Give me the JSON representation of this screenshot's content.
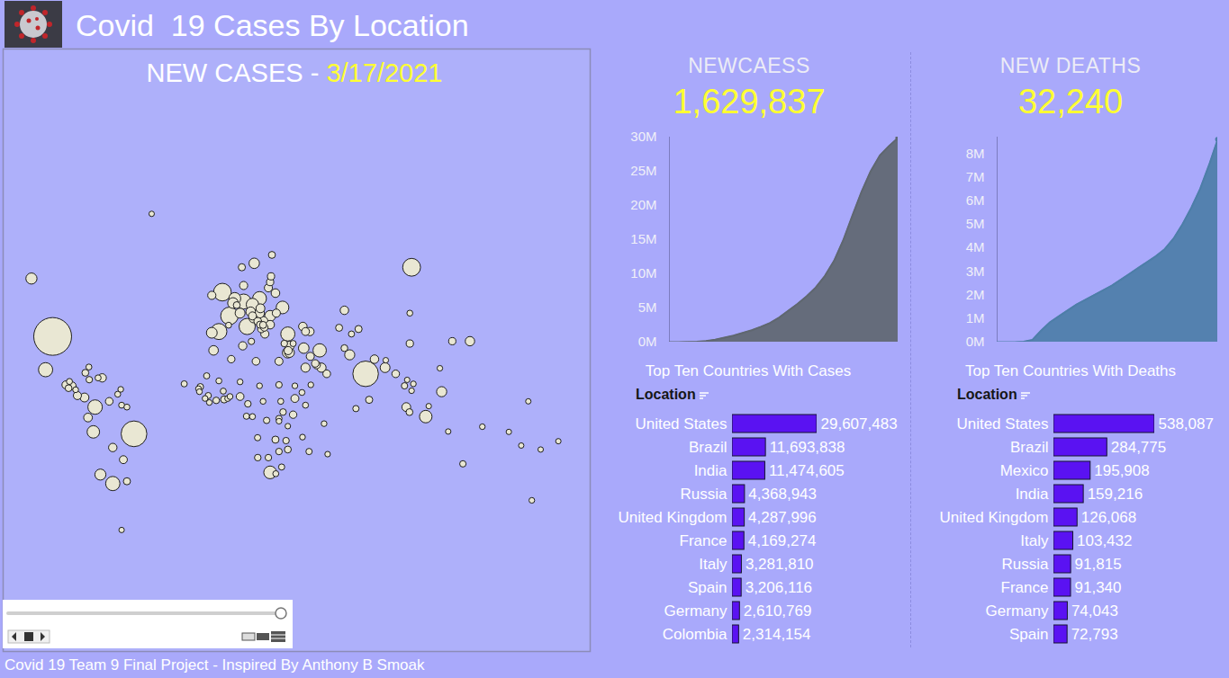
{
  "title": "Covid  19 Cases By Location",
  "caption": "Covid 19 Team 9 Final Project - Inspired By Anthony B Smoak",
  "chart_data": [
    {
      "type": "scatter",
      "title": "NEW CASES - 3/17/2021",
      "color": "#e9e7d3",
      "tick_labels": false,
      "xlim": [
        -126,
        206
      ],
      "ylim": [
        -77,
        86
      ],
      "x": [
        -98,
        -52,
        79,
        105,
        -2,
        2,
        12,
        -4,
        10,
        -74,
        -64,
        -102,
        19,
        35,
        53,
        32,
        25,
        -75,
        15,
        113,
        5,
        -110,
        -71,
        25,
        4,
        -8,
        35,
        44,
        16,
        70,
        122,
        90,
        8,
        21,
        19,
        36,
        14,
        -7,
        138,
        54,
        36,
        45,
        19.5,
        -80,
        102,
        -78,
        25,
        28,
        43.5,
        67,
        -64,
        15.5,
        -70,
        84,
        47.5,
        9.5,
        -84,
        -90.5,
        -8,
        30,
        10,
        22,
        24,
        15,
        28.5,
        39,
        47.7,
        35.2,
        45,
        57,
        18,
        -58,
        51.2,
        -87,
        -66,
        17,
        8,
        96,
        38,
        3,
        21.7,
        50.5,
        104,
        20,
        128,
        25,
        9,
        25.5,
        -56,
        81,
        75,
        -1,
        28,
        19.3,
        26,
        6.1,
        35,
        64,
        -89,
        -79.5,
        103.8,
        67,
        30,
        18,
        32.3,
        12.4,
        -14.5,
        -5.5,
        24,
        34,
        134,
        -77.3,
        -42,
        47,
        30,
        23,
        104,
        101,
        106,
        -72.3,
        -61.2,
        17.9,
        30,
        -4,
        -1.5,
        -10,
        11.6,
        -10.9,
        71,
        145,
        173,
        178,
        121,
        -23.6,
        -59,
        160,
        167,
        188,
        171,
        114.7,
        105,
        102.5,
        125.7,
        48,
        45,
        43,
        39,
        31,
        19,
        8,
        21,
        15,
        2.3,
        1,
        -11.8,
        -9.4,
        -15.5,
        -15,
        35,
        30,
        28.2,
        31.5,
        43.3,
        57.5,
        55.5,
        73.5,
        90.4,
        38,
        33,
        14.4,
        1.5,
        21,
        -88.5,
        -85,
        -59,
        -56,
        -77.5,
        -59.5
      ],
      "y": [
        38,
        -10,
        21,
        61,
        54,
        46,
        42,
        40,
        51,
        4,
        -34,
        23,
        52,
        39,
        32,
        49,
        -29,
        -9,
        50,
        -1,
        52,
        58,
        -30,
        46,
        50.5,
        39.5,
        31,
        33,
        62,
        30,
        12,
        24,
        47,
        44,
        47,
        31,
        47.5,
        32,
        36,
        24,
        34,
        24,
        48.7,
        9,
        4,
        -1.5,
        42.7,
        53.7,
        42,
        48,
        -17,
        45,
        19,
        28,
        40,
        34,
        10,
        15.5,
        53,
        27,
        56,
        39,
        55.3,
        46,
        47,
        8.5,
        29.3,
        31.9,
        40,
        21,
        44,
        -23,
        25.3,
        15,
        7,
        27,
        9.5,
        21,
        0,
        28,
        41.6,
        26,
        35,
        41,
        36,
        57,
        61,
        58.6,
        -33,
        7.8,
        41,
        8,
        -13,
        42.7,
        64,
        49.8,
        -18,
        41.5,
        13.8,
        21.5,
        1.35,
        33,
        -19,
        -22,
        1.4,
        5.7,
        14.5,
        7.5,
        -22,
        -13.5,
        -25,
        18.1,
        72,
        -19,
        15.5,
        -3,
        47,
        15,
        16,
        19,
        10.7,
        -12,
        -2,
        17.5,
        12.3,
        10,
        -0.8,
        20,
        39,
        -6.3,
        -41,
        -18,
        23.7,
        16,
        -51.7,
        -9,
        -16,
        -13.8,
        7,
        4.5,
        12.5,
        18,
        -8.8,
        15.5,
        5,
        11.6,
        15,
        7,
        15,
        17,
        7,
        -1,
        9.5,
        8.5,
        8.5,
        6.4,
        13.5,
        12,
        -6,
        -3.4,
        -29.6,
        -26.5,
        -11.7,
        -20.3,
        -4.7,
        3.2,
        27.5,
        35,
        35,
        35.9,
        42.5,
        42.6,
        17.2,
        13,
        5,
        4,
        24.3,
        13.2
      ],
      "sizes": [
        29607483,
        11693838,
        11474605,
        4368943,
        4287996,
        4169274,
        3281810,
        3206116,
        2610769,
        2314154,
        2220000,
        2180000,
        2000000,
        2150000,
        1780000,
        1500000,
        1530000,
        1420000,
        1400000,
        1440000,
        1190000,
        930000,
        900000,
        860000,
        800000,
        815000,
        830000,
        750000,
        720000,
        620000,
        640000,
        560000,
        575000,
        530000,
        530000,
        500000,
        500000,
        490000,
        450000,
        430000,
        430000,
        385000,
        350000,
        350000,
        330000,
        310000,
        290000,
        300000,
        275000,
        270000,
        260000,
        250000,
        250000,
        275000,
        245000,
        240000,
        205000,
        185000,
        227000,
        191000,
        220000,
        220000,
        205000,
        200000,
        210000,
        180000,
        200000,
        220000,
        180000,
        150000,
        150000,
        180000,
        170000,
        180000,
        145000,
        150000,
        161000,
        142000,
        117000,
        115000,
        115000,
        125000,
        101000,
        118000,
        97000,
        100000,
        88000,
        95000,
        85000,
        89000,
        86000,
        88000,
        85000,
        85000,
        70000,
        60000,
        64000,
        81000,
        61000,
        63000,
        60000,
        56000,
        37000,
        42000,
        40000,
        40000,
        37000,
        40000,
        36000,
        33000,
        29000,
        33000,
        31,
        23000,
        30000,
        27000,
        8000,
        27000,
        2600,
        12800,
        7800,
        21500,
        20000,
        9000,
        12500,
        17000,
        17000,
        17500,
        13300,
        2000,
        2400,
        67,
        1000,
        16000,
        50,
        18,
        1,
        3,
        4,
        200,
        1500,
        49,
        150,
        3000,
        10000,
        7000,
        3200,
        10000,
        4200,
        4900,
        5000,
        9000,
        6500,
        8000,
        4000,
        2000,
        5300,
        3400,
        509,
        2500,
        10600,
        17000,
        3600,
        800,
        3700,
        22000,
        870,
        16500,
        42000,
        28000,
        11000,
        78000,
        12300,
        5000,
        9000,
        8800,
        8700,
        3500
      ]
    },
    {
      "type": "area",
      "title": "NEWCAESS",
      "subtitle": "1,629,837",
      "color": "#5f6770",
      "tick_labels": "y",
      "values": [
        0,
        0,
        20000,
        50000,
        150000,
        350000,
        650000,
        950000,
        1350000,
        1750000,
        2250000,
        2800000,
        3600000,
        4600000,
        5600000,
        6700000,
        8000000,
        9700000,
        11900000,
        14900000,
        18500000,
        22000000,
        25000000,
        27300000,
        28700000,
        29900000
      ],
      "ylim": [
        0,
        30000000
      ],
      "yticks": [
        {
          "value": 0,
          "label": "0M"
        },
        {
          "value": 5000000,
          "label": "5M"
        },
        {
          "value": 10000000,
          "label": "10M"
        },
        {
          "value": 15000000,
          "label": "15M"
        },
        {
          "value": 20000000,
          "label": "20M"
        },
        {
          "value": 25000000,
          "label": "25M"
        },
        {
          "value": 30000000,
          "label": "30M"
        }
      ]
    },
    {
      "type": "area",
      "title": "NEW DEATHS",
      "subtitle": "32,240",
      "color": "#4d7ea8",
      "tick_labels": "y",
      "values": [
        0,
        0,
        0,
        20000,
        100000,
        500000,
        850000,
        1100000,
        1350000,
        1600000,
        1800000,
        2000000,
        2200000,
        2400000,
        2650000,
        2900000,
        3150000,
        3400000,
        3650000,
        3950000,
        4400000,
        5000000,
        5700000,
        6500000,
        7500000,
        8600000
      ],
      "ylim": [
        0,
        8700000
      ],
      "yticks": [
        {
          "value": 0,
          "label": "0M"
        },
        {
          "value": 1000000,
          "label": "1M"
        },
        {
          "value": 2000000,
          "label": "2M"
        },
        {
          "value": 3000000,
          "label": "3M"
        },
        {
          "value": 4000000,
          "label": "4M"
        },
        {
          "value": 5000000,
          "label": "5M"
        },
        {
          "value": 6000000,
          "label": "6M"
        },
        {
          "value": 7000000,
          "label": "7M"
        },
        {
          "value": 8000000,
          "label": "8M"
        }
      ]
    },
    {
      "type": "bar",
      "orientation": "horizontal",
      "title": "Top Ten Countries With Cases",
      "ylabel": "Location",
      "color": "#5a12f2",
      "data_labels": true,
      "tick_labels": "y",
      "xlim": [
        0,
        29607483
      ],
      "categories": [
        "United States",
        "Brazil",
        "India",
        "Russia",
        "United Kingdom",
        "France",
        "Italy",
        "Spain",
        "Germany",
        "Colombia"
      ],
      "values": [
        29607483,
        11693838,
        11474605,
        4368943,
        4287996,
        4169274,
        3281810,
        3206116,
        2610769,
        2314154
      ],
      "value_labels": [
        "29,607,483",
        "11,693,838",
        "11,474,605",
        "4,368,943",
        "4,287,996",
        "4,169,274",
        "3,281,810",
        "3,206,116",
        "2,610,769",
        "2,314,154"
      ]
    },
    {
      "type": "bar",
      "orientation": "horizontal",
      "title": "Top Ten Countries With Deaths",
      "ylabel": "Location",
      "color": "#5a12f2",
      "data_labels": true,
      "tick_labels": "y",
      "xlim": [
        0,
        538087
      ],
      "categories": [
        "United States",
        "Brazil",
        "Mexico",
        "India",
        "United Kingdom",
        "Italy",
        "Russia",
        "France",
        "Germany",
        "Spain"
      ],
      "values": [
        538087,
        284775,
        195908,
        159216,
        126068,
        103432,
        91815,
        91340,
        74043,
        72793
      ],
      "value_labels": [
        "538,087",
        "284,775",
        "195,908",
        "159,216",
        "126,068",
        "103,432",
        "91,815",
        "91,340",
        "74,043",
        "72,793"
      ]
    }
  ]
}
